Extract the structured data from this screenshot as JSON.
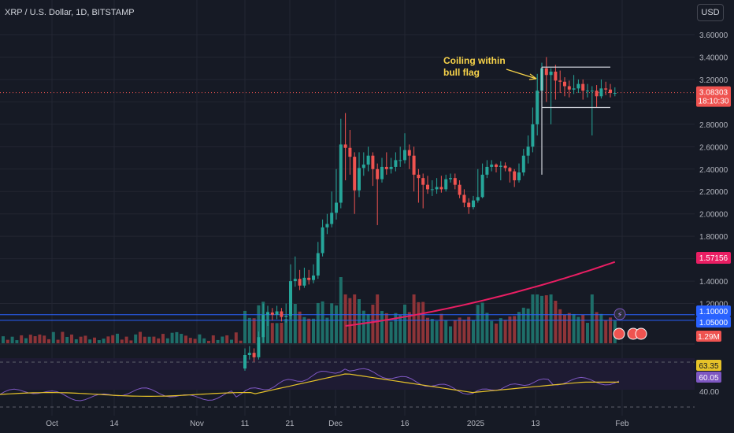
{
  "header": {
    "title": "XRP / U.S. Dollar, 1D, BITSTAMP",
    "currency_button": "USD"
  },
  "annotation": {
    "line1": "Coiling within",
    "line2": "bull flag"
  },
  "price_scale": {
    "ticks": [
      "3.60000",
      "3.40000",
      "3.20000",
      "3.00000",
      "2.80000",
      "2.60000",
      "2.40000",
      "2.20000",
      "2.00000",
      "1.80000",
      "1.60000",
      "1.40000",
      "1.20000"
    ],
    "last_price": "3.08303",
    "countdown": "18:10:30",
    "ma_label": "1.57156",
    "level_high": "1.10000",
    "level_low": "1.05000",
    "volume_label": "1.29M"
  },
  "rsi_scale": {
    "rsi_label": "63.35",
    "ma_label": "60.05",
    "tick": "40.00"
  },
  "time_axis": [
    "Oct",
    "14",
    "Nov",
    "11",
    "21",
    "Dec",
    "16",
    "2025",
    "13",
    "Feb"
  ],
  "colors": {
    "background": "#161a25",
    "up": "#26a69a",
    "down": "#ef5350",
    "vol_up": "#1e6e69",
    "vol_down": "#8d3438",
    "ma": "#e91e63",
    "levels": "#2962ff",
    "rsi": "#7e57c2",
    "rsi_ma": "#e6c229",
    "annotation": "#f7d34a",
    "grid": "#232632",
    "axis_text": "#b2b5be"
  },
  "chart_data": {
    "type": "candlestick",
    "title": "XRP / U.S. Dollar, 1D, BITSTAMP",
    "ylim": [
      1.0,
      3.7
    ],
    "dates": [
      "Nov 11",
      "Nov 12",
      "Nov 13",
      "Nov 14",
      "Nov 15",
      "Nov 16",
      "Nov 17",
      "Nov 18",
      "Nov 19",
      "Nov 20",
      "Nov 21",
      "Nov 22",
      "Nov 23",
      "Nov 24",
      "Nov 25",
      "Nov 26",
      "Nov 27",
      "Nov 28",
      "Nov 29",
      "Nov 30",
      "Dec 1",
      "Dec 2",
      "Dec 3",
      "Dec 4",
      "Dec 5",
      "Dec 6",
      "Dec 7",
      "Dec 8",
      "Dec 9",
      "Dec 10",
      "Dec 11",
      "Dec 12",
      "Dec 13",
      "Dec 14",
      "Dec 15",
      "Dec 16",
      "Dec 17",
      "Dec 18",
      "Dec 19",
      "Dec 20",
      "Dec 21",
      "Dec 22",
      "Dec 23",
      "Dec 24",
      "Dec 25",
      "Dec 26",
      "Dec 27",
      "Dec 28",
      "Dec 29",
      "Dec 30",
      "Dec 31",
      "Jan 1",
      "Jan 2",
      "Jan 3",
      "Jan 4",
      "Jan 5",
      "Jan 6",
      "Jan 7",
      "Jan 8",
      "Jan 9",
      "Jan 10",
      "Jan 11",
      "Jan 12",
      "Jan 13",
      "Jan 14",
      "Jan 15",
      "Jan 16",
      "Jan 17",
      "Jan 18",
      "Jan 19",
      "Jan 20",
      "Jan 21",
      "Jan 22",
      "Jan 23",
      "Jan 24",
      "Jan 25",
      "Jan 26",
      "Jan 27",
      "Jan 28",
      "Jan 29",
      "Jan 30",
      "Jan 31"
    ],
    "open": [
      0.62,
      0.74,
      0.76,
      0.72,
      0.9,
      1.1,
      1.12,
      1.1,
      1.13,
      1.08,
      1.09,
      1.4,
      1.42,
      1.36,
      1.43,
      1.41,
      1.45,
      1.65,
      1.88,
      1.91,
      2.01,
      2.1,
      2.62,
      2.59,
      2.51,
      2.21,
      2.41,
      2.44,
      2.52,
      2.4,
      2.31,
      2.42,
      2.4,
      2.42,
      2.48,
      2.48,
      2.57,
      2.52,
      2.35,
      2.32,
      2.26,
      2.22,
      2.22,
      2.24,
      2.22,
      2.31,
      2.32,
      2.26,
      2.17,
      2.1,
      2.06,
      2.12,
      2.15,
      2.35,
      2.42,
      2.44,
      2.42,
      2.43,
      2.41,
      2.38,
      2.3,
      2.37,
      2.52,
      2.6,
      2.8,
      3.1,
      3.3,
      3.24,
      3.27,
      3.19,
      3.18,
      3.14,
      3.11,
      3.12,
      3.16,
      3.1,
      3.1,
      3.1,
      3.05,
      3.12,
      3.11,
      3.08
    ],
    "close": [
      0.74,
      0.76,
      0.72,
      0.9,
      1.1,
      1.12,
      1.1,
      1.13,
      1.08,
      1.09,
      1.4,
      1.42,
      1.36,
      1.43,
      1.41,
      1.45,
      1.65,
      1.88,
      1.91,
      2.01,
      2.1,
      2.62,
      2.59,
      2.51,
      2.21,
      2.41,
      2.44,
      2.52,
      2.4,
      2.31,
      2.42,
      2.4,
      2.42,
      2.48,
      2.48,
      2.57,
      2.52,
      2.35,
      2.32,
      2.26,
      2.22,
      2.22,
      2.24,
      2.22,
      2.31,
      2.32,
      2.26,
      2.17,
      2.1,
      2.06,
      2.12,
      2.15,
      2.35,
      2.42,
      2.44,
      2.42,
      2.43,
      2.41,
      2.38,
      2.3,
      2.37,
      2.52,
      2.6,
      2.8,
      3.1,
      3.3,
      3.24,
      3.27,
      3.19,
      3.18,
      3.14,
      3.11,
      3.12,
      3.16,
      3.1,
      3.1,
      3.1,
      3.05,
      3.12,
      3.11,
      3.08,
      3.08
    ],
    "high": [
      0.8,
      0.82,
      0.8,
      0.95,
      1.2,
      1.18,
      1.16,
      1.18,
      1.16,
      1.2,
      1.55,
      1.62,
      1.5,
      1.52,
      1.5,
      1.55,
      1.75,
      1.95,
      2.0,
      2.2,
      2.4,
      2.85,
      2.9,
      2.75,
      2.55,
      2.55,
      2.55,
      2.6,
      2.55,
      2.45,
      2.5,
      2.55,
      2.5,
      2.55,
      2.6,
      2.72,
      2.62,
      2.6,
      2.4,
      2.36,
      2.34,
      2.3,
      2.32,
      2.34,
      2.35,
      2.36,
      2.36,
      2.3,
      2.22,
      2.14,
      2.16,
      2.4,
      2.45,
      2.48,
      2.48,
      2.45,
      2.47,
      2.46,
      2.42,
      2.4,
      2.45,
      2.58,
      2.7,
      2.95,
      3.25,
      3.35,
      3.4,
      3.3,
      3.33,
      3.28,
      3.22,
      3.19,
      3.24,
      3.2,
      3.2,
      3.16,
      3.14,
      3.15,
      3.2,
      3.18,
      3.16,
      3.13
    ],
    "low": [
      0.6,
      0.7,
      0.68,
      0.7,
      0.85,
      1.0,
      1.05,
      1.06,
      1.04,
      1.03,
      1.06,
      1.35,
      1.32,
      1.34,
      1.37,
      1.38,
      1.42,
      1.62,
      1.82,
      1.88,
      1.95,
      2.05,
      2.3,
      2.35,
      2.0,
      2.15,
      2.34,
      2.38,
      2.25,
      1.9,
      2.28,
      2.35,
      2.36,
      2.38,
      2.42,
      2.45,
      2.4,
      2.2,
      2.1,
      2.05,
      2.18,
      2.16,
      2.18,
      2.19,
      2.2,
      2.28,
      2.22,
      2.14,
      2.06,
      2.0,
      2.04,
      2.1,
      2.14,
      2.32,
      2.38,
      2.37,
      2.3,
      2.38,
      2.28,
      2.24,
      2.28,
      2.34,
      2.45,
      2.55,
      2.7,
      2.95,
      3.0,
      2.8,
      3.02,
      3.08,
      3.05,
      3.04,
      3.07,
      3.08,
      3.02,
      3.04,
      2.7,
      2.95,
      3.03,
      3.06,
      3.04,
      3.05
    ],
    "ma_series": {
      "name": "MA",
      "start_date": "Dec 3",
      "start": 1.0,
      "end": 1.57156
    },
    "horizontal_levels": [
      1.1,
      1.05
    ],
    "flag_channel": {
      "from": "Jan 15",
      "to": "Jan 30",
      "upper": 3.31,
      "lower": 2.95
    }
  }
}
